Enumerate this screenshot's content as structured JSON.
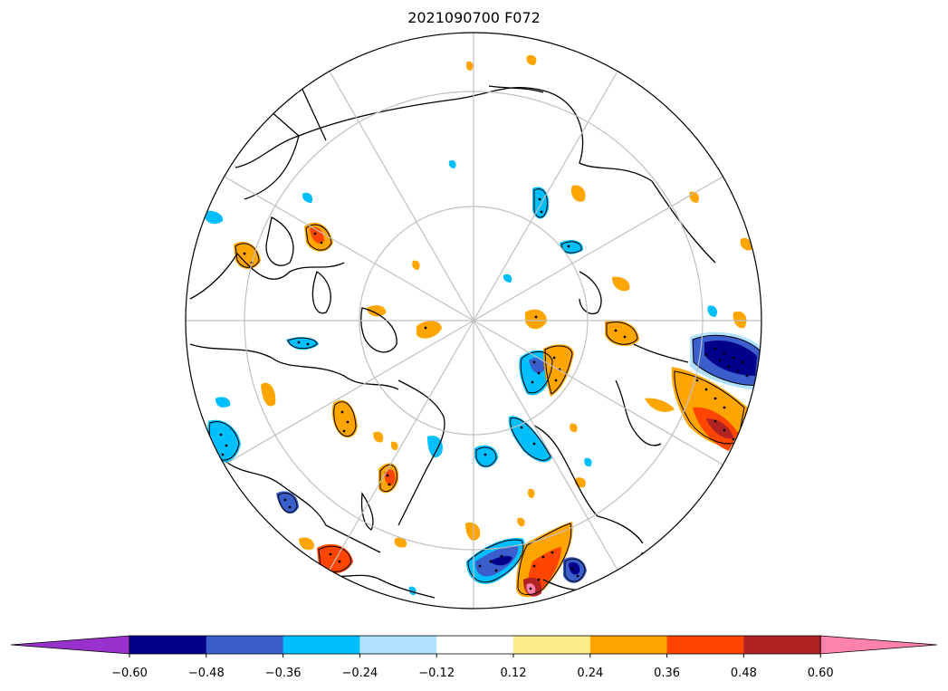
{
  "title": "2021090700 F072",
  "map": {
    "projection": "north polar stereographic",
    "graticule": "latitude circles and meridians (light grey)",
    "stippling": "black dots mark significant regions"
  },
  "colorbar": {
    "extend": "both",
    "tick_labels": [
      "−0.60",
      "−0.48",
      "−0.36",
      "−0.24",
      "−0.12",
      "0.12",
      "0.24",
      "0.36",
      "0.48",
      "0.60"
    ],
    "segments": [
      {
        "range": "< -0.60",
        "color": "#9932cc"
      },
      {
        "range": "-0.60 to -0.48",
        "color": "#00008b"
      },
      {
        "range": "-0.48 to -0.36",
        "color": "#3a5fcd"
      },
      {
        "range": "-0.36 to -0.24",
        "color": "#00bfff"
      },
      {
        "range": "-0.24 to -0.12",
        "color": "#b0e2ff"
      },
      {
        "range": "-0.12 to 0.12",
        "color": "#ffffff"
      },
      {
        "range": "0.12 to 0.24",
        "color": "#ffec8b"
      },
      {
        "range": "0.24 to 0.36",
        "color": "#ffa500"
      },
      {
        "range": "0.36 to 0.48",
        "color": "#ff4500"
      },
      {
        "range": "0.48 to 0.60",
        "color": "#b22222"
      },
      {
        "range": "> 0.60",
        "color": "#ff82ab"
      }
    ]
  }
}
